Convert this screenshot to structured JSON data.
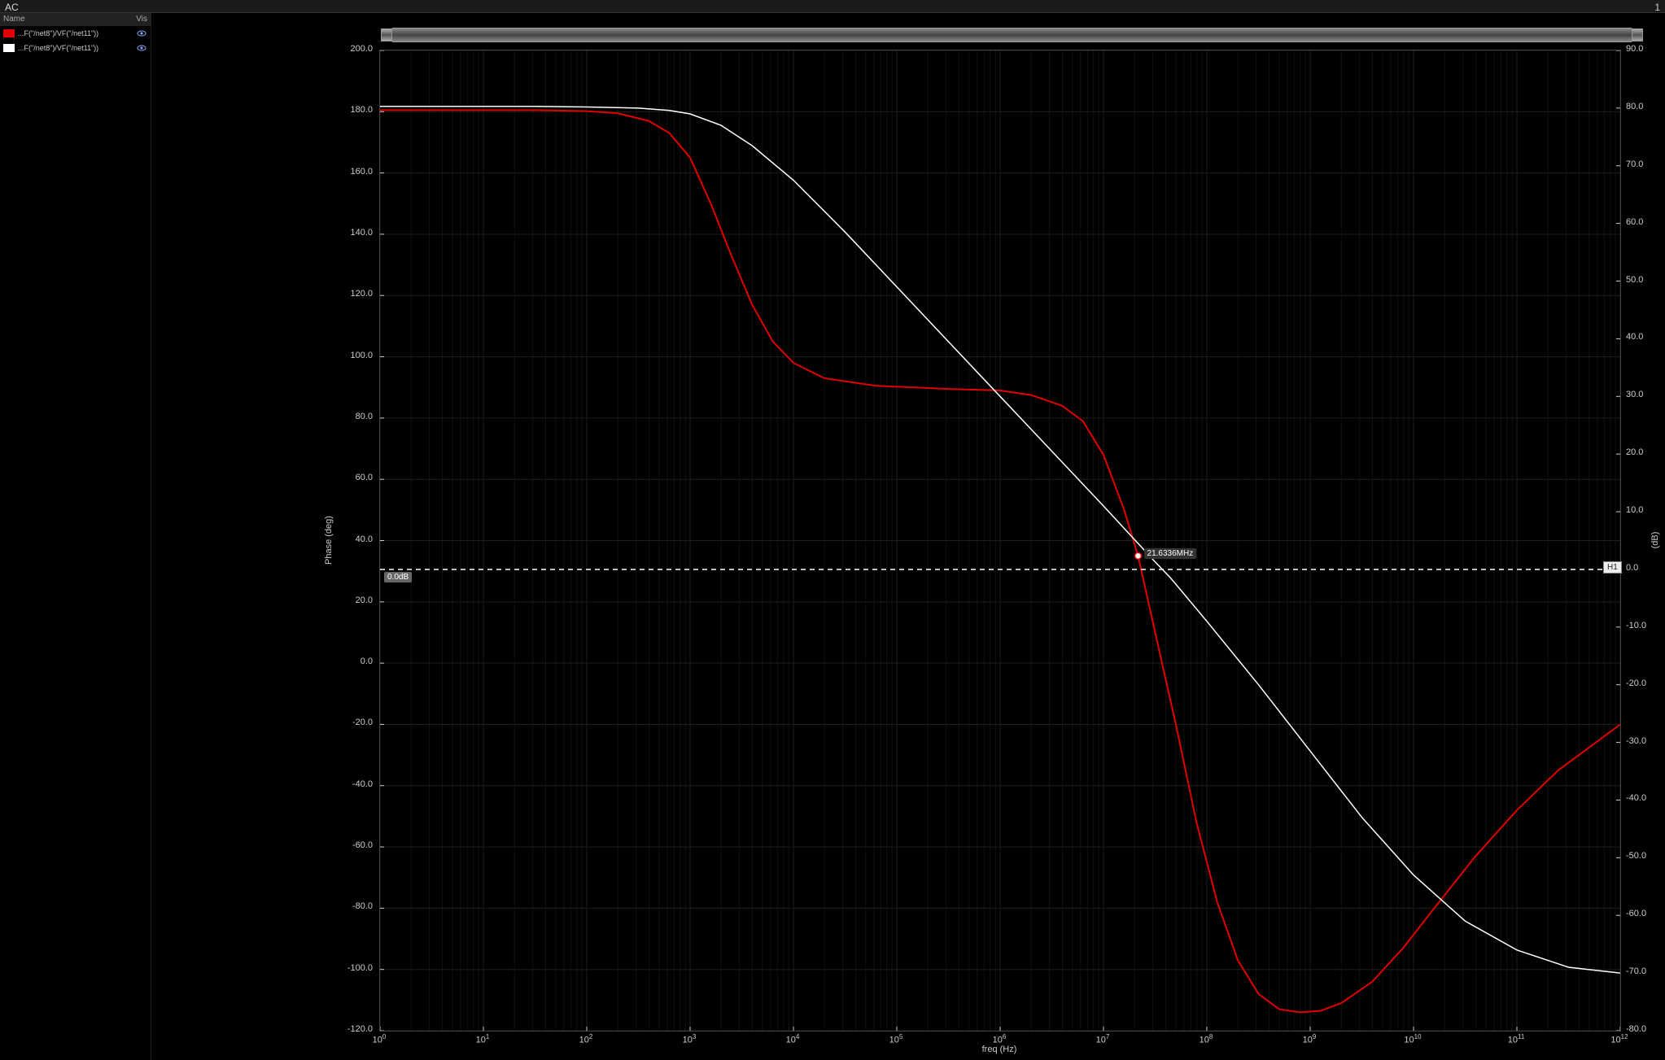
{
  "header": {
    "title": "AC"
  },
  "corner_number": "1",
  "legend": {
    "columns": {
      "name": "Name",
      "vis": "Vis"
    },
    "items": [
      {
        "color": "#e00000",
        "label": "...F(\"/net8\")/VF(\"/net11\"))"
      },
      {
        "color": "#ffffff",
        "label": "...F(\"/net8\")/VF(\"/net11\"))"
      }
    ]
  },
  "chart": {
    "type": "bode-dual-axis",
    "background_color": "#000000",
    "grid_color": "#1e1e1e",
    "minor_grid_color": "#111111",
    "border_color": "#444444",
    "x": {
      "label": "freq (Hz)",
      "scale": "log",
      "min_exp": 0,
      "max_exp": 12,
      "tick_exps": [
        0,
        1,
        2,
        3,
        4,
        5,
        6,
        7,
        8,
        9,
        10,
        11,
        12
      ],
      "tick_prefix": "10",
      "tick_fontsize": 11
    },
    "y_left": {
      "label": "Phase (deg)",
      "min": -120,
      "max": 200,
      "tick_step": 20,
      "tick_fontsize": 11
    },
    "y_right": {
      "label": "(dB)",
      "min": -80,
      "max": 90,
      "tick_step": 10,
      "tick_fontsize": 11
    },
    "series": [
      {
        "name": "phase",
        "axis": "left",
        "color": "#e00000",
        "width": 2,
        "points_log_x_y": [
          [
            0.0,
            180.5
          ],
          [
            0.5,
            180.5
          ],
          [
            1.0,
            180.5
          ],
          [
            1.5,
            180.5
          ],
          [
            2.0,
            180.2
          ],
          [
            2.3,
            179.5
          ],
          [
            2.6,
            177.0
          ],
          [
            2.8,
            173.0
          ],
          [
            3.0,
            165.0
          ],
          [
            3.2,
            150.0
          ],
          [
            3.4,
            133.0
          ],
          [
            3.6,
            117.0
          ],
          [
            3.8,
            105.0
          ],
          [
            4.0,
            98.0
          ],
          [
            4.3,
            93.0
          ],
          [
            4.8,
            90.5
          ],
          [
            5.5,
            89.5
          ],
          [
            6.0,
            89.0
          ],
          [
            6.3,
            87.5
          ],
          [
            6.6,
            84.0
          ],
          [
            6.8,
            79.0
          ],
          [
            7.0,
            68.0
          ],
          [
            7.2,
            50.0
          ],
          [
            7.335,
            35.0
          ],
          [
            7.5,
            10.0
          ],
          [
            7.7,
            -20.0
          ],
          [
            7.9,
            -52.0
          ],
          [
            8.1,
            -78.0
          ],
          [
            8.3,
            -97.0
          ],
          [
            8.5,
            -108.0
          ],
          [
            8.7,
            -113.0
          ],
          [
            8.9,
            -114.0
          ],
          [
            9.1,
            -113.5
          ],
          [
            9.3,
            -111.0
          ],
          [
            9.6,
            -104.0
          ],
          [
            9.9,
            -93.0
          ],
          [
            10.2,
            -80.0
          ],
          [
            10.6,
            -63.0
          ],
          [
            11.0,
            -48.0
          ],
          [
            11.4,
            -35.0
          ],
          [
            11.8,
            -25.0
          ],
          [
            12.0,
            -20.0
          ]
        ]
      },
      {
        "name": "magnitude",
        "axis": "right",
        "color": "#ffffff",
        "width": 1.5,
        "points_log_x_y": [
          [
            0.0,
            80.3
          ],
          [
            0.5,
            80.3
          ],
          [
            1.0,
            80.3
          ],
          [
            1.5,
            80.3
          ],
          [
            2.0,
            80.2
          ],
          [
            2.5,
            80.0
          ],
          [
            2.8,
            79.6
          ],
          [
            3.0,
            79.0
          ],
          [
            3.3,
            77.0
          ],
          [
            3.6,
            73.5
          ],
          [
            4.0,
            67.5
          ],
          [
            4.5,
            58.5
          ],
          [
            5.0,
            49.0
          ],
          [
            5.5,
            39.5
          ],
          [
            6.0,
            30.0
          ],
          [
            6.5,
            20.5
          ],
          [
            7.0,
            11.0
          ],
          [
            7.335,
            4.5
          ],
          [
            7.5,
            1.3
          ],
          [
            7.65,
            -1.5
          ],
          [
            8.0,
            -9.0
          ],
          [
            8.5,
            -20.0
          ],
          [
            9.0,
            -31.5
          ],
          [
            9.5,
            -43.0
          ],
          [
            10.0,
            -53.0
          ],
          [
            10.5,
            -61.0
          ],
          [
            11.0,
            -66.0
          ],
          [
            11.5,
            -69.0
          ],
          [
            12.0,
            -70.0
          ]
        ]
      }
    ],
    "h_marker": {
      "axis": "right",
      "value": 0.0,
      "label_right": "H1",
      "label_left": "0.0dB",
      "dash": "6,5",
      "color": "#ffffff"
    },
    "point_marker": {
      "x_log": 7.335,
      "y_left": 35.0,
      "label": "21.6336MHz",
      "dot_fill": "#ffffff",
      "dot_stroke": "#e00000"
    }
  }
}
